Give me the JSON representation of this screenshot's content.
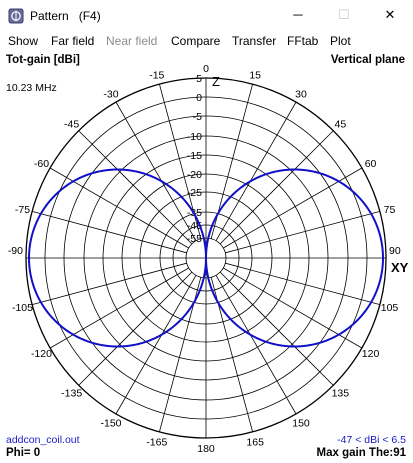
{
  "window": {
    "title": "Pattern   (F4)",
    "icon": "pattern-app-icon",
    "controls": {
      "minimize": "─",
      "maximize": "☐",
      "close": "✕"
    }
  },
  "menu": [
    {
      "label": "Show",
      "enabled": true
    },
    {
      "label": "Far field",
      "enabled": true
    },
    {
      "label": "Near field",
      "enabled": false
    },
    {
      "label": "Compare",
      "enabled": true
    },
    {
      "label": "Transfer",
      "enabled": true
    },
    {
      "label": "FFtab",
      "enabled": true
    },
    {
      "label": "Plot",
      "enabled": true
    }
  ],
  "plot": {
    "header_left": "Tot-gain [dBi]",
    "header_right": "Vertical plane",
    "frequency": "10.23 MHz",
    "axis_labels": {
      "z": "Z",
      "xy": "XY"
    },
    "angle_labels": [
      "0",
      "15",
      "30",
      "45",
      "60",
      "75",
      "90",
      "105",
      "120",
      "135",
      "150",
      "165",
      "180",
      "-165",
      "-150",
      "-135",
      "-120",
      "-105",
      "-90",
      "-75",
      "-60",
      "-45",
      "-30",
      "-15"
    ],
    "ring_labels": [
      "5",
      "0",
      "-5",
      "-10",
      "-15",
      "-20",
      "-25",
      "-35",
      "-45",
      "-55"
    ],
    "footer_file": "addcon_coil.out",
    "footer_range": "-47 < dBi < 6.5",
    "footer_phi": "Phi= 0",
    "footer_max": "Max gain The:91",
    "colors": {
      "pattern": "#1010c8",
      "grid": "#000000",
      "footer_blue": "#1a1ac8"
    }
  },
  "chart_data": {
    "type": "polar",
    "title": "Tot-gain [dBi]",
    "subtitle": "Vertical plane",
    "r_ticks_dbi": [
      5,
      0,
      -5,
      -10,
      -15,
      -20,
      -25,
      -35,
      -45,
      -55
    ],
    "theta_ticks_deg": [
      0,
      15,
      30,
      45,
      60,
      75,
      90,
      105,
      120,
      135,
      150,
      165,
      180,
      -165,
      -150,
      -135,
      -120,
      -105,
      -90,
      -75,
      -60,
      -45,
      -30,
      -15
    ],
    "pattern_model": "vertical dipole, gain proportional to sin(theta)",
    "max_gain_theta_deg": 91,
    "gain_range_dbi": [
      -47,
      6.5
    ],
    "phi_deg": 0
  }
}
